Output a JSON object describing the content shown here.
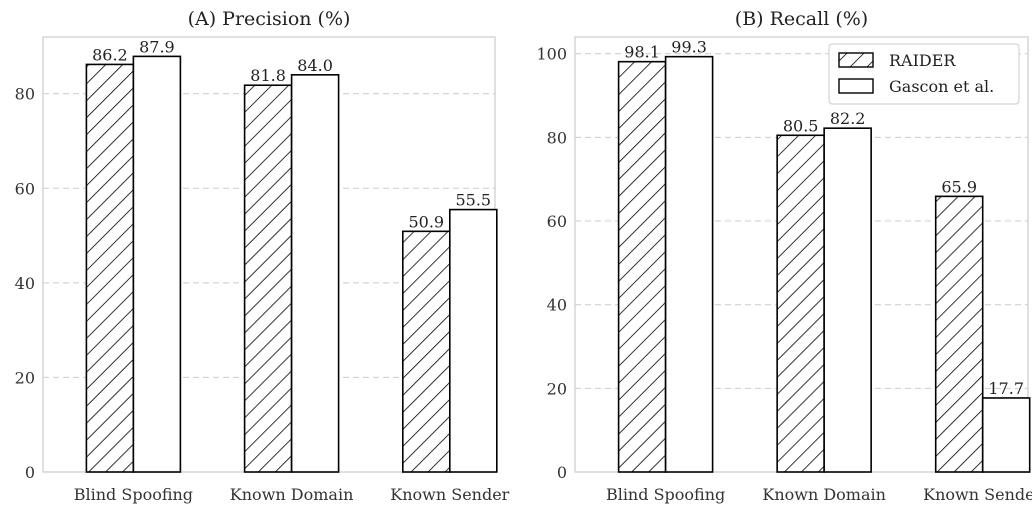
{
  "chart_data": [
    {
      "type": "bar",
      "title": "(A) Precision (%)",
      "categories": [
        "Blind Spoofing",
        "Known Domain",
        "Known Sender"
      ],
      "series": [
        {
          "name": "RAIDER",
          "values": [
            86.2,
            81.8,
            50.9
          ],
          "labels": [
            "86.2",
            "81.8",
            "50.9"
          ],
          "pattern": "hatch"
        },
        {
          "name": "Gascon et al.",
          "values": [
            87.9,
            84.0,
            55.5
          ],
          "labels": [
            "87.9",
            "84.0",
            "55.5"
          ],
          "pattern": "solid-white"
        }
      ],
      "ylim": [
        0,
        92
      ],
      "yticks": [
        "0",
        "20",
        "40",
        "60",
        "80"
      ],
      "grid": "y-dashed",
      "legend": "none"
    },
    {
      "type": "bar",
      "title": "(B) Recall (%)",
      "categories": [
        "Blind Spoofing",
        "Known Domain",
        "Known Sender"
      ],
      "series": [
        {
          "name": "RAIDER",
          "values": [
            98.1,
            80.5,
            65.9
          ],
          "labels": [
            "98.1",
            "80.5",
            "65.9"
          ],
          "pattern": "hatch"
        },
        {
          "name": "Gascon et al.",
          "values": [
            99.3,
            82.2,
            17.7
          ],
          "labels": [
            "99.3",
            "82.2",
            "17.7"
          ],
          "pattern": "solid-white"
        }
      ],
      "ylim": [
        0,
        104
      ],
      "yticks": [
        "0",
        "20",
        "40",
        "60",
        "80",
        "100"
      ],
      "grid": "y-dashed",
      "legend": "top-right"
    }
  ],
  "colors": {
    "edge": "#000000",
    "grid": "#cccccc",
    "frame": "#cccccc",
    "bar_fill": "#ffffff"
  }
}
